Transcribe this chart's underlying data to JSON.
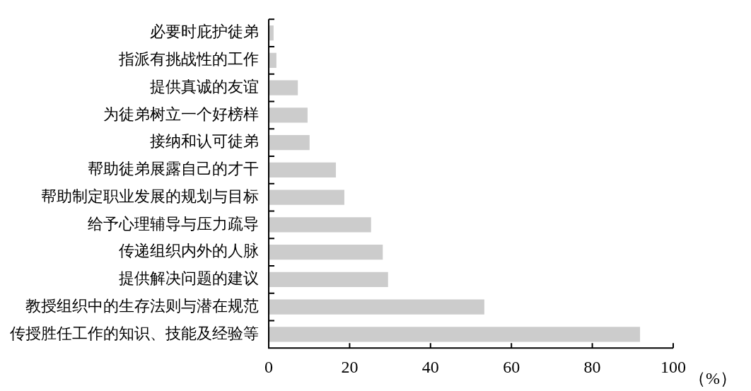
{
  "chart_data": {
    "type": "bar",
    "orientation": "horizontal",
    "xlabel": "（%）",
    "categories": [
      "必要时庇护徒弟",
      "指派有挑战性的工作",
      "提供真诚的友谊",
      "为徒弟树立一个好榜样",
      "接纳和认可徒弟",
      "帮助徒弟展露自己的才干",
      "帮助制定职业发展的规划与目标",
      "给予心理辅导与压力疏导",
      "传递组织内外的人脉",
      "提供解决问题的建议",
      "教授组织中的生存法则与潜在规范",
      "传授胜任工作的知识、技能及经验等"
    ],
    "values": [
      1.2,
      1.9,
      7.2,
      9.6,
      10.1,
      16.6,
      18.7,
      25.3,
      28.2,
      29.5,
      53.3,
      91.8
    ],
    "color": "#cccccc",
    "xlim": [
      0,
      100
    ],
    "xticks": [
      0,
      20,
      40,
      60,
      80,
      100
    ],
    "grid": false,
    "legend": false
  }
}
